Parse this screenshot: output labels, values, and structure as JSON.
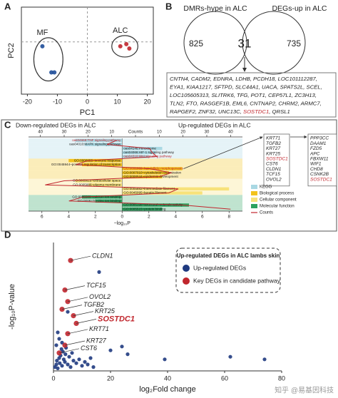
{
  "chart_data": [
    {
      "panel": "A",
      "type": "scatter",
      "xlabel": "PC1",
      "ylabel": "PC2",
      "xlim": [
        -22,
        22
      ],
      "xticks": [
        -20,
        -10,
        0,
        10,
        20
      ],
      "ylim": [
        -12,
        8
      ],
      "frame": true,
      "zero_lines": true,
      "group_ellipses": true,
      "series": [
        {
          "name": "MF",
          "color": "#1f4e99",
          "x": [
            -15,
            -12,
            -11
          ],
          "values": [
            -1,
            -7,
            -7
          ]
        },
        {
          "name": "ALC",
          "color": "#c0262d",
          "x": [
            11,
            13,
            14
          ],
          "values": [
            -1,
            -0.5,
            -1.5
          ]
        }
      ]
    },
    {
      "panel": "B",
      "type": "venn",
      "sets": [
        "DMRs-hype in ALC",
        "DEGs-up in ALC"
      ],
      "values": [
        825,
        31,
        735
      ],
      "gene_list": [
        [
          {
            "text": "CNTN4, CADM2, EDNRA, LDHB, PCDH18, LOC101112287,",
            "color": "#222222"
          }
        ],
        [
          {
            "text": "EYA1, KIAA1217, SFTPD, SLC44A1, UACA, SPATS2L, SCEL,",
            "color": "#222222"
          }
        ],
        [
          {
            "text": "LOC105605313, SLITRK6, TFG, POT1, CEP57L1, ZC3H13,",
            "color": "#222222"
          }
        ],
        [
          {
            "text": "TLN2, FTO, RASGEF1B, EML6, CNTNAP2, CHRM2, ARMC7,",
            "color": "#222222"
          }
        ],
        [
          {
            "text": "RAPGEF2, ZNF32, UNC13C, ",
            "color": "#222222"
          },
          {
            "text": "SOSTDC1",
            "color": "#c0262d"
          },
          {
            "text": ", QRSL1",
            "color": "#222222"
          }
        ]
      ]
    },
    {
      "panel": "C",
      "type": "bar",
      "titles": [
        "Down-regulated DEGs in ALC",
        "Up-regulated DEGs in ALC"
      ],
      "xlabel": "−log₁₀P",
      "x2label": "Counts",
      "xlim": [
        -7,
        9
      ],
      "xticks": [
        {
          "value": -6,
          "label": "6"
        },
        {
          "value": -4,
          "label": "4"
        },
        {
          "value": -2,
          "label": "2"
        },
        0,
        2,
        4,
        6,
        8
      ],
      "x2lim": [
        -45,
        45
      ],
      "x2ticks": [
        {
          "value": -40,
          "label": "40"
        },
        {
          "value": -30,
          "label": "30"
        },
        {
          "value": -20,
          "label": "20"
        },
        {
          "value": -10,
          "label": "10"
        },
        0,
        10,
        20,
        30,
        40
      ],
      "categories": [
        "oas04668:TNF signaling pathway",
        "oas04010:MAPK signaling pathway",
        "oas04146:Peroxisome",
        "oas04066:HIF-1 signaling pathway",
        "oas04310:Wnt signaling pathway",
        "GO:0006955~immune response",
        "GO:0045944~positive regulation of transcription",
        "GO:0031069~hair follicle morphogenesis",
        "GO:0007010~cytoskeleton organization",
        "GO:0008544~epidermis development",
        "GO:0005615~extracellular space",
        "GO:0005886~plasma membrane",
        "GO:0005882~intermediate filament",
        "GO:0045095~keratin filament",
        "GO:0005509~calcium ion binding",
        "GO:0008270~zinc ion binding",
        "GO:0005198~structural molecule activity",
        "GO:0005515~protein binding"
      ],
      "sides": [
        "down",
        "down",
        "up",
        "up",
        "up",
        "down",
        "down",
        "up",
        "up",
        "up",
        "down",
        "down",
        "up",
        "up",
        "down",
        "down",
        "up",
        "up"
      ],
      "groups": [
        0,
        0,
        0,
        0,
        0,
        1,
        1,
        1,
        1,
        1,
        2,
        2,
        2,
        2,
        3,
        3,
        3,
        3
      ],
      "values": [
        3.5,
        2.8,
        3.0,
        2.5,
        2.0,
        4.0,
        3.0,
        4.5,
        3.5,
        3.0,
        3.5,
        2.5,
        8.0,
        6.0,
        3.0,
        2.0,
        5.0,
        3.0
      ],
      "counts": [
        8,
        12,
        6,
        7,
        9,
        20,
        25,
        6,
        15,
        10,
        30,
        38,
        18,
        14,
        22,
        28,
        20,
        40
      ],
      "label_colors": [
        "#c0262d",
        "#222222",
        "#222222",
        "#222222",
        "#c0262d",
        "#222222",
        "#222222",
        "#c0262d",
        "#222222",
        "#222222",
        "#222222",
        "#222222",
        "#222222",
        "#222222",
        "#222222",
        "#222222",
        "#222222",
        "#222222"
      ],
      "group_names": [
        "KEGG",
        "Biological process",
        "Cellular component",
        "Molecular function"
      ],
      "group_colors": [
        "#a9d8e3",
        "#f2c21b",
        "#f7e27a",
        "#2ca25f"
      ],
      "counts_name": "Counts",
      "counts_color": "#c0262d",
      "gene_boxes": [
        {
          "genes": [
            "KRT71",
            "TGFB2",
            "KRT27",
            "KRT25",
            "SOSTDC1",
            "CST6",
            "CLDN1",
            "TCF15",
            "OVOL2"
          ],
          "colors": [
            "#222222",
            "#222222",
            "#222222",
            "#222222",
            "#c0262d",
            "#222222",
            "#222222",
            "#222222",
            "#222222"
          ]
        },
        {
          "genes": [
            "PPP3CC",
            "DAAM1",
            "FZD5",
            "APC",
            "FBXW11",
            "WIF1",
            "CHD8",
            "CSNK2B",
            "SOSTDC1"
          ],
          "colors": [
            "#222222",
            "#222222",
            "#222222",
            "#222222",
            "#222222",
            "#222222",
            "#222222",
            "#222222",
            "#c0262d"
          ]
        }
      ]
    },
    {
      "panel": "D",
      "type": "scatter",
      "xlabel": "log₂Fold change",
      "ylabel": "-log₁₀P-value",
      "xlim": [
        0,
        80
      ],
      "xticks": [
        0,
        20,
        40,
        60,
        80
      ],
      "ylim": [
        0,
        100
      ],
      "frame": false,
      "zero_lines": false,
      "group_ellipses": false,
      "legend": {
        "title": "Up-regulated DEGs in ALC lambs skin",
        "position": "upper right"
      },
      "series": [
        {
          "name": "Up-regulated DEGs",
          "color": "#1f3a80",
          "x": [
            0.5,
            1,
            1.2,
            1.5,
            2,
            2.2,
            2.5,
            3,
            3.3,
            3.6,
            4,
            4.4,
            5,
            5.5,
            6,
            6.5,
            7,
            8,
            9,
            10,
            11,
            12,
            13,
            14,
            16,
            5,
            20,
            24,
            26,
            39,
            62,
            74,
            1,
            2,
            3,
            1.5,
            2.8,
            4.2
          ],
          "values": [
            3,
            5,
            8,
            2,
            10,
            6,
            12,
            4,
            15,
            9,
            7,
            18,
            5,
            11,
            3,
            14,
            8,
            6,
            9,
            4,
            7,
            5,
            10,
            3,
            77,
            46,
            16,
            19,
            13,
            9,
            11,
            9,
            20,
            25,
            22,
            30,
            17,
            13
          ]
        },
        {
          "name": "Key DEGs in candidate pathway",
          "color": "#c0262d",
          "x": [
            6,
            4,
            5,
            3,
            7,
            8,
            5,
            4,
            2
          ],
          "values": [
            86,
            63,
            54,
            48,
            43,
            37,
            29,
            20,
            14
          ],
          "labels": [
            "CLDN1",
            "TCF15",
            "OVOL2",
            "TGFB2",
            "KRT25",
            "SOSTDC1",
            "KRT71",
            "KRT27",
            "CST6"
          ],
          "label_colors": [
            "#222222",
            "#222222",
            "#222222",
            "#222222",
            "#222222",
            "#c0262d",
            "#222222",
            "#222222",
            "#222222"
          ]
        }
      ]
    }
  ],
  "watermark": "知乎 @易基因科技"
}
